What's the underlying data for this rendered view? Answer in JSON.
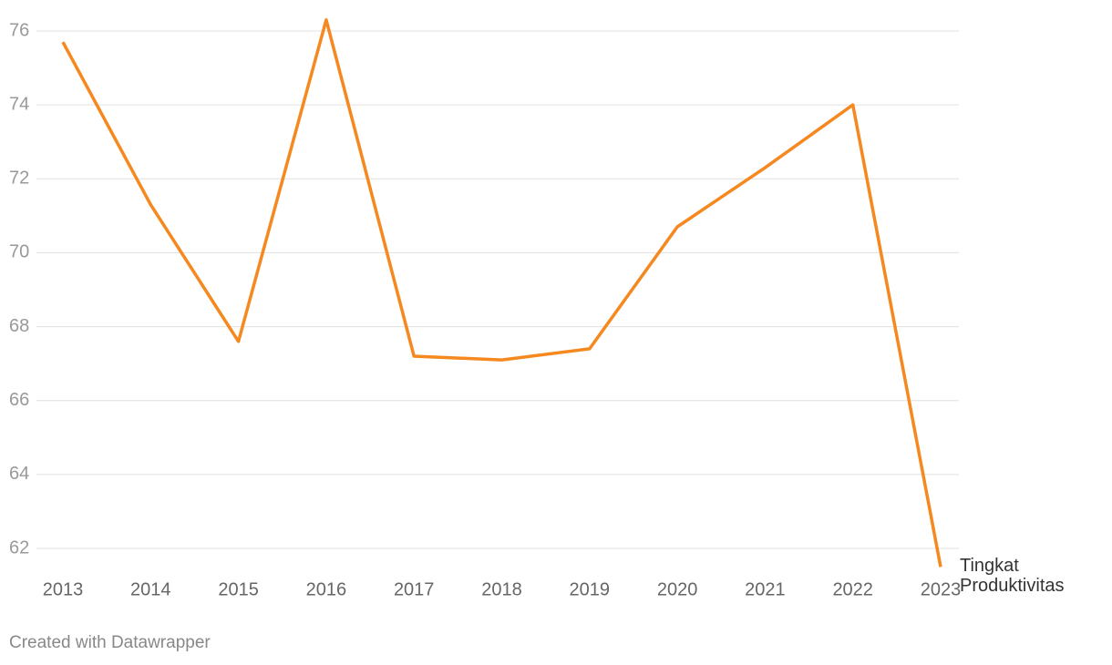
{
  "chart_data": {
    "type": "line",
    "categories": [
      "2013",
      "2014",
      "2015",
      "2016",
      "2017",
      "2018",
      "2019",
      "2020",
      "2021",
      "2022",
      "2023"
    ],
    "series": [
      {
        "name": "Tingkat Produktivitas",
        "color": "#f5881f",
        "values": [
          75.7,
          71.3,
          67.6,
          76.3,
          67.2,
          67.1,
          67.4,
          70.7,
          72.3,
          74.0,
          61.5
        ]
      }
    ],
    "ylim": [
      61.5,
      76.5
    ],
    "yticks": [
      62,
      64,
      66,
      68,
      70,
      72,
      74,
      76
    ],
    "grid": true,
    "footer": "Created with Datawrapper"
  }
}
